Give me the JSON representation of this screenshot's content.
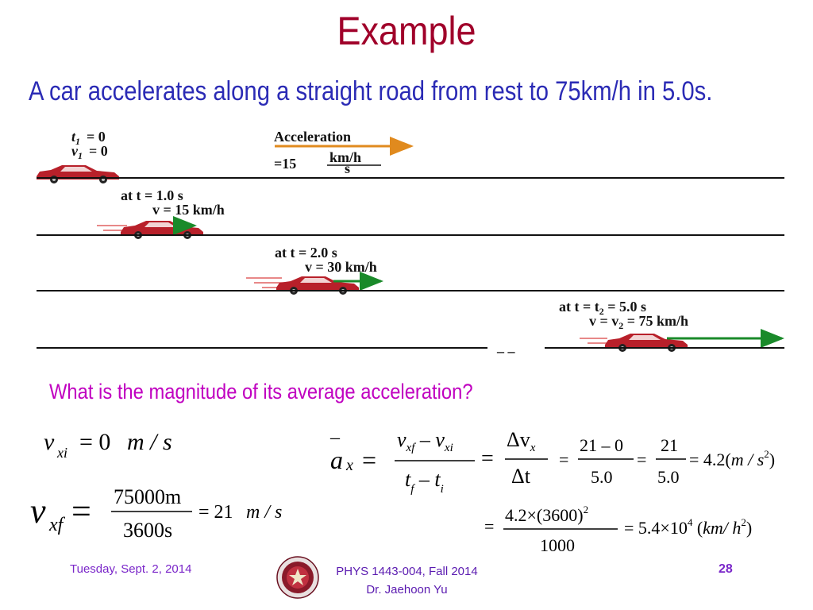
{
  "slide": {
    "title": "Example",
    "subtitle": "A car accelerates along a straight road from rest to 75km/h in 5.0s.",
    "question": "What is the magnitude of its average acceleration?",
    "footer": {
      "date": "Tuesday, Sept. 2, 2014",
      "course": "PHYS 1443-004, Fall 2014",
      "instructor": "Dr. Jaehoon Yu",
      "page": "28"
    },
    "colors": {
      "title": "#a0002a",
      "subtitle": "#2b2bb5",
      "question": "#c000c0",
      "car": "#b8202a",
      "arrow_orange": "#e08a1e",
      "arrow_green": "#1a8a2a"
    }
  },
  "figure": {
    "stage0": {
      "t_label": "t",
      "t_sub": "1",
      "t_val": "= 0",
      "v_label": "v",
      "v_sub": "1",
      "v_val": "= 0"
    },
    "acceleration": {
      "label": "Acceleration",
      "value": "=15",
      "unit_num": "km/h",
      "unit_den": "s"
    },
    "stage1": {
      "line1": "at t  =  1.0 s",
      "line2": "v  =  15 km/h"
    },
    "stage2": {
      "line1": "at t  =  2.0 s",
      "line2": "v  =  30 km/h"
    },
    "stage3": {
      "line1": "at t = t",
      "line1_sub": "2",
      "line1_tail": " =   5.0 s",
      "line2": "v = v",
      "line2_sub": "2",
      "line2_tail": " =  75 km/h"
    },
    "gap": "_ _"
  },
  "equations": {
    "vxi": {
      "lhs": "v",
      "sub": "xi",
      "rhs": "= 0",
      "unit": "m / s"
    },
    "vxf": {
      "lhs": "v",
      "sub": "xf",
      "eq": "=",
      "num": "75000m",
      "den": "3600s",
      "result": "= 21",
      "unit": "m / s"
    },
    "ax": {
      "bar": "–",
      "lhs": "a",
      "sub": "x",
      "eq": "=",
      "f1_num_a": "v",
      "f1_num_a_sub": "xf",
      "f1_num_b": " – v",
      "f1_num_b_sub": "xi",
      "f1_den_a": "t",
      "f1_den_a_sub": "f",
      "f1_den_b": " – t",
      "f1_den_b_sub": "i",
      "eq2": "=",
      "f2_num": "Δv",
      "f2_num_sub": "x",
      "f2_den": "Δt",
      "eq3": "=",
      "f3_num": "21 – 0",
      "f3_den": "5.0",
      "eq4": "=",
      "f4_num": "21",
      "f4_den": "5.0",
      "result": "= 4.2(",
      "result_unit": "m / s",
      "result_exp": "2",
      "result_close": ")"
    },
    "conv": {
      "eq": "=",
      "num_a": "4.2×",
      "num_b": "(3600)",
      "num_exp": "2",
      "den": "1000",
      "result": "= 5.4×10",
      "result_exp": "4",
      "unit_open": " (",
      "unit": "km/ h",
      "unit_exp": "2",
      "unit_close": ")"
    }
  }
}
